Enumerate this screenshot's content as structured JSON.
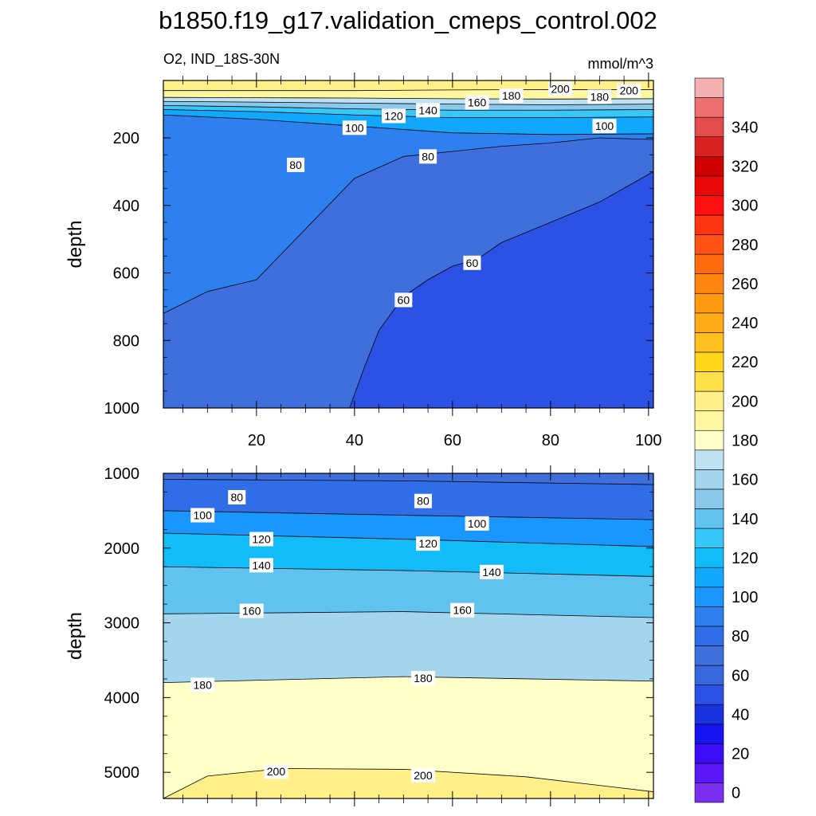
{
  "title": "b1850.f19_g17.validation_cmeps_control.002",
  "chart_data": [
    {
      "type": "heatmap",
      "panel": "upper",
      "left_title": "O2, IND_18S-30N",
      "right_title": "mmol/m^3",
      "ylabel": "depth",
      "xlim": [
        1,
        101
      ],
      "ylim": [
        1000,
        30
      ],
      "x_ticks": [
        20,
        40,
        60,
        80,
        100
      ],
      "y_ticks": [
        200,
        400,
        600,
        800,
        1000
      ],
      "contours": [
        {
          "level": 200,
          "x": [
            1,
            20,
            40,
            60,
            80,
            101
          ],
          "y": [
            60,
            60,
            60,
            58,
            57,
            57
          ]
        },
        {
          "level": 180,
          "x": [
            1,
            20,
            40,
            60,
            80,
            101
          ],
          "y": [
            80,
            81,
            82,
            84,
            85,
            84
          ]
        },
        {
          "level": 160,
          "x": [
            1,
            20,
            40,
            60,
            80,
            101
          ],
          "y": [
            92,
            94,
            97,
            100,
            102,
            100
          ]
        },
        {
          "level": 140,
          "x": [
            1,
            20,
            40,
            60,
            80,
            101
          ],
          "y": [
            104,
            108,
            114,
            118,
            118,
            116
          ]
        },
        {
          "level": 120,
          "x": [
            1,
            20,
            40,
            60,
            80,
            101
          ],
          "y": [
            116,
            122,
            132,
            140,
            140,
            138
          ]
        },
        {
          "level": 100,
          "x": [
            1,
            20,
            40,
            60,
            80,
            101
          ],
          "y": [
            132,
            145,
            165,
            185,
            190,
            188
          ]
        },
        {
          "level": 80,
          "x": [
            1,
            10,
            20,
            30,
            40,
            50,
            60,
            70,
            80,
            90,
            101
          ],
          "y": [
            720,
            655,
            620,
            470,
            320,
            255,
            240,
            225,
            215,
            200,
            205
          ]
        },
        {
          "level": 60,
          "x": [
            39,
            42,
            45,
            50,
            55,
            60,
            65,
            70,
            80,
            90,
            101
          ],
          "y": [
            1000,
            880,
            770,
            670,
            620,
            580,
            560,
            510,
            450,
            390,
            300
          ]
        }
      ],
      "contour_labels": [
        {
          "text": "200",
          "x": 82,
          "y": 55
        },
        {
          "text": "180",
          "x": 72,
          "y": 75
        },
        {
          "text": "200",
          "x": 96,
          "y": 60
        },
        {
          "text": "180",
          "x": 90,
          "y": 78
        },
        {
          "text": "160",
          "x": 65,
          "y": 95
        },
        {
          "text": "140",
          "x": 55,
          "y": 118
        },
        {
          "text": "120",
          "x": 48,
          "y": 135
        },
        {
          "text": "100",
          "x": 40,
          "y": 170
        },
        {
          "text": "100",
          "x": 91,
          "y": 165
        },
        {
          "text": "80",
          "x": 28,
          "y": 280
        },
        {
          "text": "80",
          "x": 55,
          "y": 255
        },
        {
          "text": "60",
          "x": 50,
          "y": 680
        },
        {
          "text": "60",
          "x": 64,
          "y": 570
        }
      ]
    },
    {
      "type": "heatmap",
      "panel": "lower",
      "ylabel": "depth",
      "xlim": [
        1,
        101
      ],
      "ylim": [
        5350,
        1000
      ],
      "y_ticks": [
        1000,
        2000,
        3000,
        4000,
        5000
      ],
      "contours": [
        {
          "level": 80,
          "x": [
            1,
            50,
            101
          ],
          "y": [
            1080,
            1100,
            1150
          ]
        },
        {
          "level": 100,
          "x": [
            1,
            50,
            101
          ],
          "y": [
            1500,
            1560,
            1620
          ]
        },
        {
          "level": 120,
          "x": [
            1,
            50,
            101
          ],
          "y": [
            1800,
            1880,
            1980
          ]
        },
        {
          "level": 140,
          "x": [
            1,
            50,
            101
          ],
          "y": [
            2250,
            2300,
            2380
          ]
        },
        {
          "level": 160,
          "x": [
            1,
            50,
            101
          ],
          "y": [
            2880,
            2850,
            2930
          ]
        },
        {
          "level": 180,
          "x": [
            1,
            50,
            101
          ],
          "y": [
            3800,
            3720,
            3780
          ]
        },
        {
          "level": 200,
          "x": [
            1,
            10,
            25,
            50,
            75,
            101
          ],
          "y": [
            5350,
            5050,
            4950,
            4960,
            5060,
            5260
          ]
        }
      ],
      "contour_labels": [
        {
          "text": "80",
          "x": 16,
          "y": 1320
        },
        {
          "text": "100",
          "x": 9,
          "y": 1560
        },
        {
          "text": "80",
          "x": 54,
          "y": 1370
        },
        {
          "text": "100",
          "x": 65,
          "y": 1670
        },
        {
          "text": "120",
          "x": 21,
          "y": 1880
        },
        {
          "text": "120",
          "x": 55,
          "y": 1940
        },
        {
          "text": "140",
          "x": 21,
          "y": 2230
        },
        {
          "text": "140",
          "x": 68,
          "y": 2320
        },
        {
          "text": "160",
          "x": 19,
          "y": 2840
        },
        {
          "text": "160",
          "x": 62,
          "y": 2830
        },
        {
          "text": "180",
          "x": 9,
          "y": 3830
        },
        {
          "text": "180",
          "x": 54,
          "y": 3740
        },
        {
          "text": "200",
          "x": 24,
          "y": 4990
        },
        {
          "text": "200",
          "x": 54,
          "y": 5040
        }
      ]
    }
  ],
  "colorbar": {
    "levels": [
      0,
      10,
      20,
      30,
      40,
      50,
      60,
      70,
      80,
      90,
      100,
      110,
      120,
      130,
      140,
      150,
      160,
      170,
      180,
      190,
      200,
      210,
      220,
      230,
      240,
      250,
      260,
      270,
      280,
      290,
      300,
      310,
      320,
      330,
      340,
      350,
      360
    ],
    "colors": [
      "#7b2ff0",
      "#5a17f7",
      "#3c0cf6",
      "#1712f0",
      "#1833dd",
      "#2c52e5",
      "#3768de",
      "#3f6fdc",
      "#2f6ee6",
      "#2f80ef",
      "#1a96ff",
      "#11a8fb",
      "#11bcf7",
      "#37c7f9",
      "#5fc2ef",
      "#8ac9ec",
      "#a4d5ef",
      "#bfe1f2",
      "#ffffc8",
      "#fff7a0",
      "#fff08a",
      "#ffe048",
      "#ffd51c",
      "#ffc01e",
      "#ffaa17",
      "#ff9a10",
      "#ff8410",
      "#ff6c10",
      "#ff5214",
      "#ff3410",
      "#ff1010",
      "#e80808",
      "#d00000",
      "#d82222",
      "#e34c4c",
      "#ec7070",
      "#f5b0b0"
    ],
    "tick_labels": [
      "0",
      "20",
      "40",
      "60",
      "80",
      "100",
      "120",
      "140",
      "160",
      "180",
      "200",
      "220",
      "240",
      "260",
      "280",
      "300",
      "320",
      "340"
    ]
  }
}
